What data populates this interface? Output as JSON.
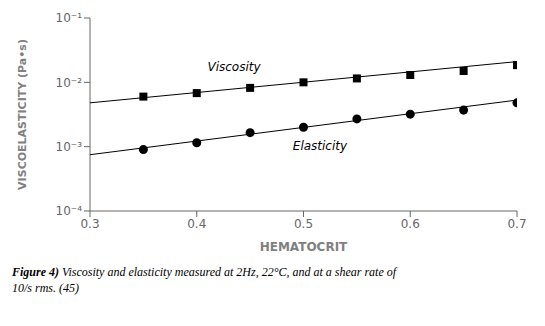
{
  "chart_data": {
    "type": "scatter",
    "title": "",
    "xlabel": "HEMATOCRIT",
    "ylabel": "VISCOELASTICITY  (Pa•s)",
    "log": "y",
    "grid": false,
    "xlim": [
      0.3,
      0.7
    ],
    "xticks": [
      0.3,
      0.4,
      0.5,
      0.6,
      0.7
    ],
    "ylim": [
      0.0001,
      0.1
    ],
    "yticks": [
      {
        "value": 0.0001,
        "label": "10⁻⁴"
      },
      {
        "value": 0.001,
        "label": "10⁻³"
      },
      {
        "value": 0.01,
        "label": "10⁻²"
      },
      {
        "value": 0.1,
        "label": "10⁻¹"
      }
    ],
    "series": [
      {
        "type": "line",
        "color": "#000000",
        "x": [
          0.3,
          0.7
        ],
        "values": [
          0.0048,
          0.021
        ]
      },
      {
        "type": "line",
        "color": "#000000",
        "x": [
          0.3,
          0.7
        ],
        "values": [
          0.00075,
          0.0053
        ]
      },
      {
        "type": "scatter",
        "marker": "square",
        "color": "#000000",
        "x": [
          0.35,
          0.4,
          0.45,
          0.5,
          0.55,
          0.6,
          0.65,
          0.7
        ],
        "values": [
          0.006,
          0.0068,
          0.0082,
          0.01,
          0.0115,
          0.013,
          0.015,
          0.0185
        ]
      },
      {
        "type": "scatter",
        "marker": "circle",
        "color": "#000000",
        "x": [
          0.35,
          0.4,
          0.45,
          0.5,
          0.55,
          0.6,
          0.65,
          0.7
        ],
        "values": [
          0.0009,
          0.00115,
          0.00165,
          0.002,
          0.0027,
          0.0032,
          0.0037,
          0.0048
        ]
      }
    ],
    "annotations": [
      {
        "text": "Viscosity",
        "x": 0.41,
        "y": 0.0135
      },
      {
        "text": "Elasticity",
        "x": 0.49,
        "y": 0.0013
      }
    ],
    "caption": {
      "bold": "Figure 4)",
      "lines": [
        "Viscosity and elasticity measured at 2Hz, 22°C, and at a shear rate of",
        "10/s rms. (45)"
      ]
    }
  }
}
